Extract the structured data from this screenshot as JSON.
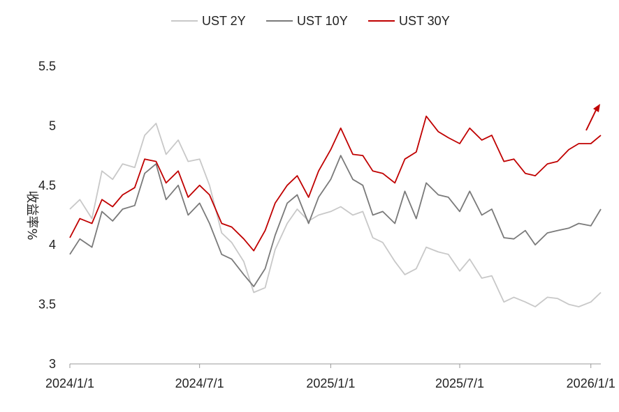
{
  "chart_data": {
    "type": "line",
    "ylabel": "收益率%",
    "ylim": [
      3,
      5.5
    ],
    "yticks": [
      "3",
      "3.5",
      "4",
      "4.5",
      "5",
      "5.5"
    ],
    "xticks": [
      "2024/1/1",
      "2024/7/1",
      "2025/1/1",
      "2025/7/1",
      "2026/1/1"
    ],
    "xlim": [
      "2024-01-01",
      "2026-01-15"
    ],
    "grid": false,
    "legend_position": "top-center",
    "annotation": "red-up-arrow-icon",
    "series": [
      {
        "name": "UST 2Y",
        "color": "#c8c8c8",
        "points": [
          [
            "2024-01-01",
            4.3
          ],
          [
            "2024-01-15",
            4.38
          ],
          [
            "2024-02-01",
            4.22
          ],
          [
            "2024-02-15",
            4.62
          ],
          [
            "2024-03-01",
            4.55
          ],
          [
            "2024-03-15",
            4.68
          ],
          [
            "2024-04-01",
            4.65
          ],
          [
            "2024-04-15",
            4.92
          ],
          [
            "2024-05-01",
            5.02
          ],
          [
            "2024-05-15",
            4.76
          ],
          [
            "2024-06-01",
            4.88
          ],
          [
            "2024-06-15",
            4.7
          ],
          [
            "2024-07-01",
            4.72
          ],
          [
            "2024-07-15",
            4.5
          ],
          [
            "2024-08-01",
            4.1
          ],
          [
            "2024-08-15",
            4.02
          ],
          [
            "2024-09-01",
            3.86
          ],
          [
            "2024-09-15",
            3.6
          ],
          [
            "2024-10-01",
            3.64
          ],
          [
            "2024-10-15",
            3.96
          ],
          [
            "2024-11-01",
            4.18
          ],
          [
            "2024-11-15",
            4.3
          ],
          [
            "2024-12-01",
            4.2
          ],
          [
            "2024-12-15",
            4.25
          ],
          [
            "2025-01-01",
            4.28
          ],
          [
            "2025-01-15",
            4.32
          ],
          [
            "2025-02-01",
            4.25
          ],
          [
            "2025-02-15",
            4.28
          ],
          [
            "2025-03-01",
            4.06
          ],
          [
            "2025-03-15",
            4.02
          ],
          [
            "2025-04-01",
            3.86
          ],
          [
            "2025-04-15",
            3.75
          ],
          [
            "2025-05-01",
            3.8
          ],
          [
            "2025-05-15",
            3.98
          ],
          [
            "2025-06-01",
            3.94
          ],
          [
            "2025-06-15",
            3.92
          ],
          [
            "2025-07-01",
            3.78
          ],
          [
            "2025-07-15",
            3.88
          ],
          [
            "2025-08-01",
            3.72
          ],
          [
            "2025-08-15",
            3.74
          ],
          [
            "2025-09-01",
            3.52
          ],
          [
            "2025-09-15",
            3.56
          ],
          [
            "2025-10-01",
            3.52
          ],
          [
            "2025-10-15",
            3.48
          ],
          [
            "2025-11-01",
            3.56
          ],
          [
            "2025-11-15",
            3.55
          ],
          [
            "2025-12-01",
            3.5
          ],
          [
            "2025-12-15",
            3.48
          ],
          [
            "2026-01-01",
            3.52
          ],
          [
            "2026-01-15",
            3.6
          ]
        ]
      },
      {
        "name": "UST 10Y",
        "color": "#7a7a7a",
        "points": [
          [
            "2024-01-01",
            3.92
          ],
          [
            "2024-01-15",
            4.05
          ],
          [
            "2024-02-01",
            3.98
          ],
          [
            "2024-02-15",
            4.28
          ],
          [
            "2024-03-01",
            4.2
          ],
          [
            "2024-03-15",
            4.3
          ],
          [
            "2024-04-01",
            4.33
          ],
          [
            "2024-04-15",
            4.6
          ],
          [
            "2024-05-01",
            4.68
          ],
          [
            "2024-05-15",
            4.38
          ],
          [
            "2024-06-01",
            4.5
          ],
          [
            "2024-06-15",
            4.25
          ],
          [
            "2024-07-01",
            4.35
          ],
          [
            "2024-07-15",
            4.18
          ],
          [
            "2024-08-01",
            3.92
          ],
          [
            "2024-08-15",
            3.88
          ],
          [
            "2024-09-01",
            3.75
          ],
          [
            "2024-09-15",
            3.65
          ],
          [
            "2024-10-01",
            3.8
          ],
          [
            "2024-10-15",
            4.08
          ],
          [
            "2024-11-01",
            4.35
          ],
          [
            "2024-11-15",
            4.42
          ],
          [
            "2024-12-01",
            4.18
          ],
          [
            "2024-12-15",
            4.4
          ],
          [
            "2025-01-01",
            4.55
          ],
          [
            "2025-01-15",
            4.75
          ],
          [
            "2025-02-01",
            4.55
          ],
          [
            "2025-02-15",
            4.5
          ],
          [
            "2025-03-01",
            4.25
          ],
          [
            "2025-03-15",
            4.28
          ],
          [
            "2025-04-01",
            4.18
          ],
          [
            "2025-04-15",
            4.45
          ],
          [
            "2025-05-01",
            4.22
          ],
          [
            "2025-05-15",
            4.52
          ],
          [
            "2025-06-01",
            4.42
          ],
          [
            "2025-06-15",
            4.4
          ],
          [
            "2025-07-01",
            4.28
          ],
          [
            "2025-07-15",
            4.45
          ],
          [
            "2025-08-01",
            4.25
          ],
          [
            "2025-08-15",
            4.3
          ],
          [
            "2025-09-01",
            4.06
          ],
          [
            "2025-09-15",
            4.05
          ],
          [
            "2025-10-01",
            4.12
          ],
          [
            "2025-10-15",
            4.0
          ],
          [
            "2025-11-01",
            4.1
          ],
          [
            "2025-11-15",
            4.12
          ],
          [
            "2025-12-01",
            4.14
          ],
          [
            "2025-12-15",
            4.18
          ],
          [
            "2026-01-01",
            4.16
          ],
          [
            "2026-01-15",
            4.3
          ]
        ]
      },
      {
        "name": "UST 30Y",
        "color": "#c00000",
        "points": [
          [
            "2024-01-01",
            4.06
          ],
          [
            "2024-01-15",
            4.22
          ],
          [
            "2024-02-01",
            4.18
          ],
          [
            "2024-02-15",
            4.38
          ],
          [
            "2024-03-01",
            4.32
          ],
          [
            "2024-03-15",
            4.42
          ],
          [
            "2024-04-01",
            4.48
          ],
          [
            "2024-04-15",
            4.72
          ],
          [
            "2024-05-01",
            4.7
          ],
          [
            "2024-05-15",
            4.52
          ],
          [
            "2024-06-01",
            4.62
          ],
          [
            "2024-06-15",
            4.4
          ],
          [
            "2024-07-01",
            4.5
          ],
          [
            "2024-07-15",
            4.42
          ],
          [
            "2024-08-01",
            4.18
          ],
          [
            "2024-08-15",
            4.15
          ],
          [
            "2024-09-01",
            4.05
          ],
          [
            "2024-09-15",
            3.95
          ],
          [
            "2024-10-01",
            4.12
          ],
          [
            "2024-10-15",
            4.35
          ],
          [
            "2024-11-01",
            4.5
          ],
          [
            "2024-11-15",
            4.58
          ],
          [
            "2024-12-01",
            4.4
          ],
          [
            "2024-12-15",
            4.62
          ],
          [
            "2025-01-01",
            4.8
          ],
          [
            "2025-01-15",
            4.98
          ],
          [
            "2025-02-01",
            4.76
          ],
          [
            "2025-02-15",
            4.75
          ],
          [
            "2025-03-01",
            4.62
          ],
          [
            "2025-03-15",
            4.6
          ],
          [
            "2025-04-01",
            4.52
          ],
          [
            "2025-04-15",
            4.72
          ],
          [
            "2025-05-01",
            4.78
          ],
          [
            "2025-05-15",
            5.08
          ],
          [
            "2025-06-01",
            4.95
          ],
          [
            "2025-06-15",
            4.9
          ],
          [
            "2025-07-01",
            4.85
          ],
          [
            "2025-07-15",
            4.98
          ],
          [
            "2025-08-01",
            4.88
          ],
          [
            "2025-08-15",
            4.92
          ],
          [
            "2025-09-01",
            4.7
          ],
          [
            "2025-09-15",
            4.72
          ],
          [
            "2025-10-01",
            4.6
          ],
          [
            "2025-10-15",
            4.58
          ],
          [
            "2025-11-01",
            4.68
          ],
          [
            "2025-11-15",
            4.7
          ],
          [
            "2025-12-01",
            4.8
          ],
          [
            "2025-12-15",
            4.85
          ],
          [
            "2026-01-01",
            4.85
          ],
          [
            "2026-01-15",
            4.92
          ]
        ]
      }
    ]
  }
}
